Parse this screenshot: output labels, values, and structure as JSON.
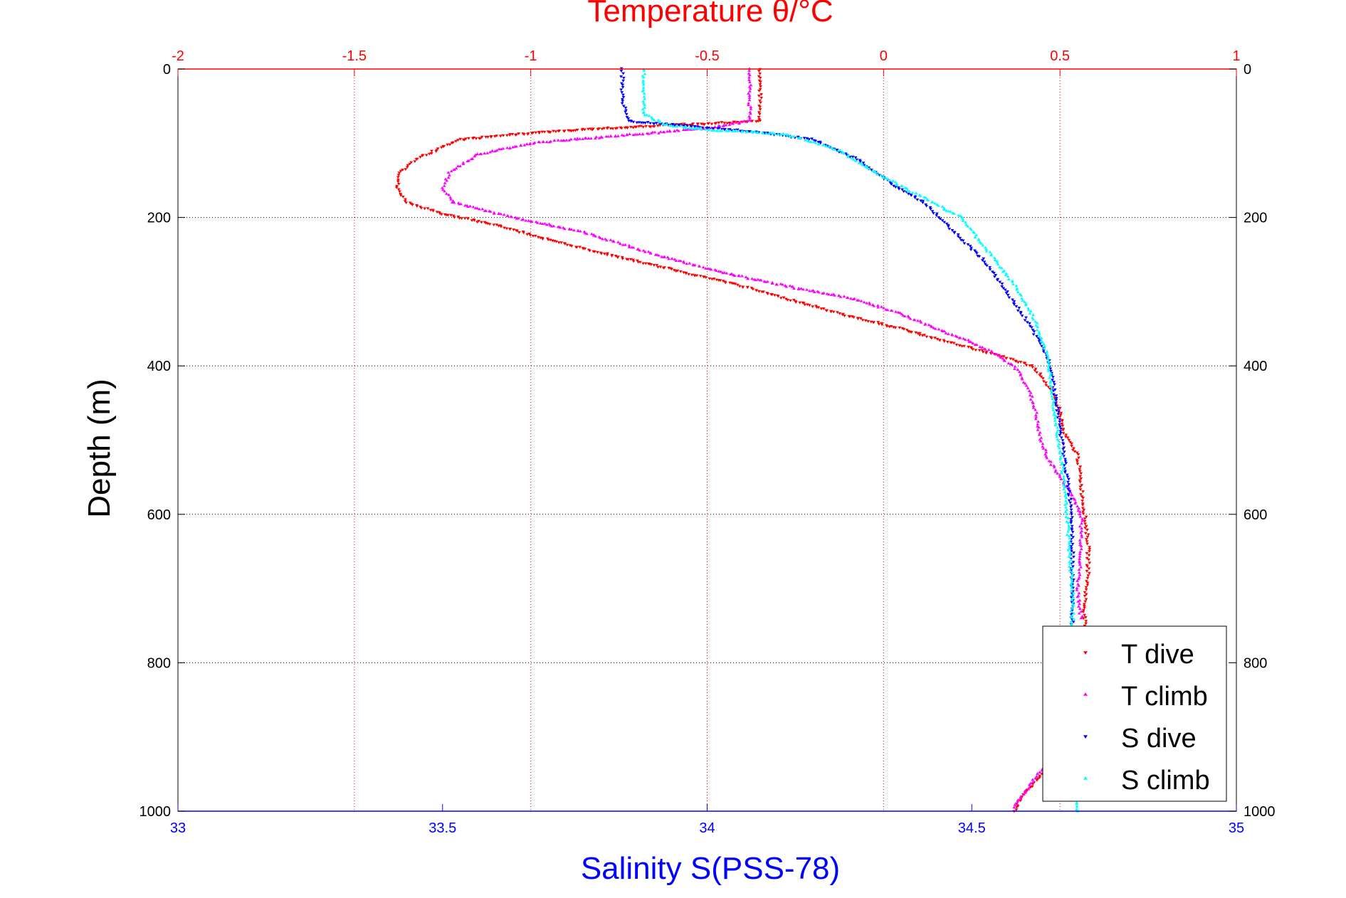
{
  "chart_data": {
    "type": "scatter",
    "title": "",
    "top_axis": {
      "label": "Temperature θ/°C",
      "range": [
        -2,
        1
      ],
      "ticks": [
        -2,
        -1.5,
        -1,
        -0.5,
        0,
        0.5,
        1
      ],
      "tick_labels": [
        "-2",
        "-1.5",
        "-1",
        "-0.5",
        "0",
        "0.5",
        "1"
      ],
      "color": "#ff0000"
    },
    "bottom_axis": {
      "label": "Salinity S(PSS-78)",
      "range": [
        33,
        35
      ],
      "ticks": [
        33,
        33.5,
        34,
        34.5,
        35
      ],
      "tick_labels": [
        "33",
        "33.5",
        "34",
        "34.5",
        "35"
      ],
      "color": "#0000ff"
    },
    "y_axis": {
      "label": "Depth (m)",
      "range": [
        0,
        1000
      ],
      "reversed": true,
      "ticks": [
        0,
        200,
        400,
        600,
        800,
        1000
      ],
      "tick_labels": [
        "0",
        "200",
        "400",
        "600",
        "800",
        "1000"
      ]
    },
    "grid": "dotted, at top-axis temperature ticks and depth ticks",
    "legend": {
      "position": "bottom-right",
      "entries": [
        {
          "label": "T dive",
          "color": "#ff0000",
          "marker": "triangle-down"
        },
        {
          "label": "T climb",
          "color": "#ff00ff",
          "marker": "triangle-up"
        },
        {
          "label": "S dive",
          "color": "#0000ff",
          "marker": "triangle-down"
        },
        {
          "label": "S climb",
          "color": "#00ffff",
          "marker": "triangle-up"
        }
      ]
    },
    "series": [
      {
        "axis": "top",
        "color": "#ff0000",
        "marker": "triangle-down",
        "points": [
          [
            -0.35,
            0
          ],
          [
            -0.35,
            30
          ],
          [
            -0.35,
            70
          ],
          [
            -0.8,
            80
          ],
          [
            -1.05,
            88
          ],
          [
            -1.2,
            95
          ],
          [
            -1.32,
            120
          ],
          [
            -1.37,
            140
          ],
          [
            -1.38,
            160
          ],
          [
            -1.35,
            180
          ],
          [
            -1.25,
            195
          ],
          [
            -1.1,
            210
          ],
          [
            -0.95,
            230
          ],
          [
            -0.78,
            250
          ],
          [
            -0.6,
            270
          ],
          [
            -0.42,
            290
          ],
          [
            -0.27,
            310
          ],
          [
            -0.12,
            330
          ],
          [
            0.05,
            350
          ],
          [
            0.2,
            370
          ],
          [
            0.32,
            385
          ],
          [
            0.42,
            400
          ],
          [
            0.45,
            415
          ],
          [
            0.47,
            430
          ],
          [
            0.5,
            460
          ],
          [
            0.51,
            490
          ],
          [
            0.55,
            520
          ],
          [
            0.56,
            560
          ],
          [
            0.57,
            600
          ],
          [
            0.58,
            640
          ],
          [
            0.58,
            680
          ],
          [
            0.57,
            720
          ],
          [
            0.57,
            750
          ]
        ]
      },
      {
        "axis": "top",
        "color": "#ff0000",
        "marker": "triangle-down",
        "points": [
          [
            0.5,
            930
          ],
          [
            0.45,
            950
          ],
          [
            0.41,
            970
          ],
          [
            0.38,
            990
          ],
          [
            0.37,
            1000
          ]
        ]
      },
      {
        "axis": "top",
        "color": "#ff00ff",
        "marker": "triangle-up",
        "points": [
          [
            -0.38,
            0
          ],
          [
            -0.38,
            30
          ],
          [
            -0.38,
            70
          ],
          [
            -0.5,
            80
          ],
          [
            -0.75,
            90
          ],
          [
            -1.0,
            100
          ],
          [
            -1.15,
            115
          ],
          [
            -1.23,
            140
          ],
          [
            -1.25,
            160
          ],
          [
            -1.22,
            180
          ],
          [
            -1.05,
            200
          ],
          [
            -0.85,
            220
          ],
          [
            -0.65,
            250
          ],
          [
            -0.45,
            275
          ],
          [
            -0.25,
            295
          ],
          [
            -0.08,
            310
          ],
          [
            0.05,
            330
          ],
          [
            0.15,
            350
          ],
          [
            0.25,
            368
          ],
          [
            0.32,
            385
          ],
          [
            0.38,
            405
          ],
          [
            0.41,
            430
          ],
          [
            0.43,
            460
          ],
          [
            0.44,
            490
          ],
          [
            0.46,
            520
          ],
          [
            0.5,
            550
          ],
          [
            0.53,
            570
          ],
          [
            0.56,
            600
          ],
          [
            0.56,
            650
          ],
          [
            0.55,
            700
          ],
          [
            0.56,
            740
          ]
        ]
      },
      {
        "axis": "top",
        "color": "#ff00ff",
        "marker": "triangle-up",
        "points": [
          [
            0.47,
            935
          ],
          [
            0.43,
            955
          ],
          [
            0.4,
            975
          ],
          [
            0.37,
            995
          ]
        ]
      },
      {
        "axis": "bottom",
        "color": "#0000ff",
        "marker": "triangle-down",
        "points": [
          [
            33.84,
            0
          ],
          [
            33.84,
            40
          ],
          [
            33.85,
            70
          ],
          [
            34.1,
            85
          ],
          [
            34.2,
            95
          ],
          [
            34.28,
            120
          ],
          [
            34.35,
            155
          ],
          [
            34.41,
            180
          ],
          [
            34.46,
            215
          ],
          [
            34.52,
            255
          ],
          [
            34.56,
            295
          ],
          [
            34.6,
            335
          ],
          [
            34.63,
            370
          ],
          [
            34.65,
            400
          ],
          [
            34.66,
            450
          ],
          [
            34.67,
            500
          ],
          [
            34.68,
            550
          ],
          [
            34.69,
            600
          ],
          [
            34.69,
            700
          ],
          [
            34.69,
            760
          ]
        ]
      },
      {
        "axis": "bottom",
        "color": "#00ffff",
        "marker": "triangle-up",
        "points": [
          [
            33.88,
            0
          ],
          [
            33.88,
            40
          ],
          [
            33.88,
            60
          ],
          [
            33.92,
            75
          ],
          [
            34.0,
            82
          ],
          [
            34.15,
            88
          ],
          [
            34.25,
            110
          ],
          [
            34.33,
            145
          ],
          [
            34.4,
            170
          ],
          [
            34.48,
            200
          ],
          [
            34.53,
            245
          ],
          [
            34.58,
            290
          ],
          [
            34.62,
            340
          ],
          [
            34.64,
            380
          ],
          [
            34.65,
            420
          ],
          [
            34.66,
            480
          ],
          [
            34.67,
            530
          ],
          [
            34.68,
            600
          ],
          [
            34.69,
            700
          ],
          [
            34.69,
            760
          ],
          [
            34.7,
            900
          ],
          [
            34.7,
            1000
          ]
        ]
      }
    ]
  }
}
